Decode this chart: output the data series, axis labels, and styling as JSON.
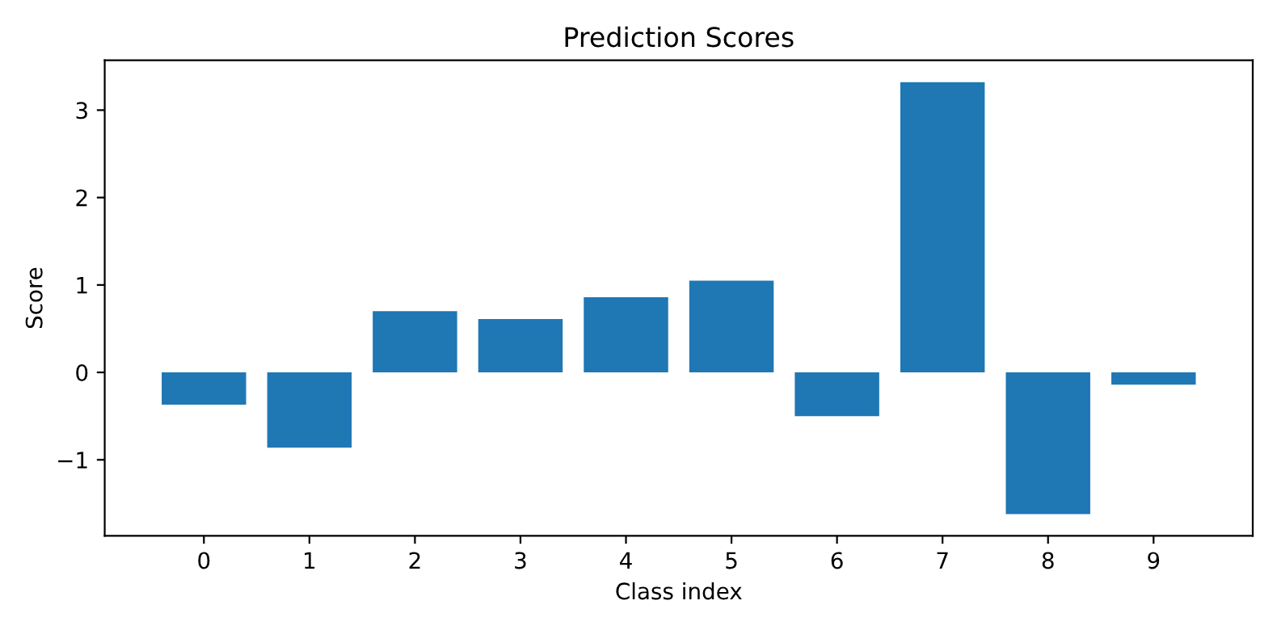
{
  "chart_data": {
    "type": "bar",
    "title": "Prediction Scores",
    "xlabel": "Class index",
    "ylabel": "Score",
    "categories": [
      "0",
      "1",
      "2",
      "3",
      "4",
      "5",
      "6",
      "7",
      "8",
      "9"
    ],
    "values": [
      -0.37,
      -0.86,
      0.7,
      0.61,
      0.86,
      1.05,
      -0.5,
      3.32,
      -1.62,
      -0.14
    ],
    "color": "#1f77b4",
    "ylim": [
      -1.87,
      3.57
    ],
    "yticks": [
      {
        "value": -1,
        "label": "−1"
      },
      0,
      1,
      2,
      3
    ]
  }
}
